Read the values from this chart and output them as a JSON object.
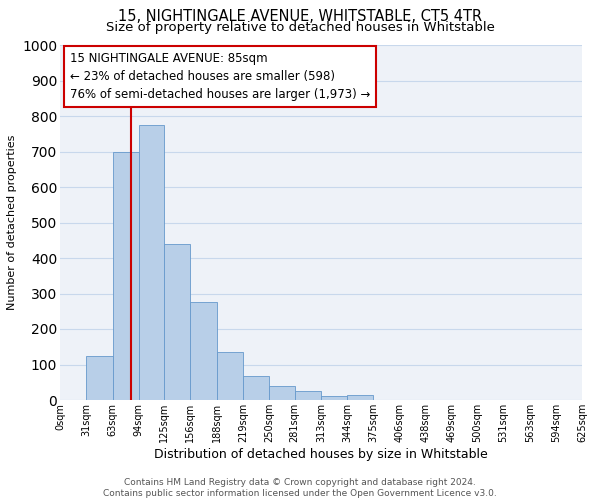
{
  "title": "15, NIGHTINGALE AVENUE, WHITSTABLE, CT5 4TR",
  "subtitle": "Size of property relative to detached houses in Whitstable",
  "xlabel": "Distribution of detached houses by size in Whitstable",
  "ylabel": "Number of detached properties",
  "bar_edges": [
    0,
    31,
    63,
    94,
    125,
    156,
    188,
    219,
    250,
    281,
    313,
    344,
    375,
    406,
    438,
    469,
    500,
    531,
    563,
    594,
    625
  ],
  "bar_heights": [
    0,
    125,
    700,
    775,
    440,
    275,
    135,
    68,
    40,
    25,
    10,
    15,
    0,
    0,
    0,
    0,
    0,
    0,
    0,
    0
  ],
  "bar_color": "#b8cfe8",
  "bar_edgecolor": "#6699cc",
  "property_size": 85,
  "vline_color": "#cc0000",
  "annotation_text": "15 NIGHTINGALE AVENUE: 85sqm\n← 23% of detached houses are smaller (598)\n76% of semi-detached houses are larger (1,973) →",
  "annotation_box_edgecolor": "#cc0000",
  "annotation_box_facecolor": "#ffffff",
  "ylim": [
    0,
    1000
  ],
  "tick_labels": [
    "0sqm",
    "31sqm",
    "63sqm",
    "94sqm",
    "125sqm",
    "156sqm",
    "188sqm",
    "219sqm",
    "250sqm",
    "281sqm",
    "313sqm",
    "344sqm",
    "375sqm",
    "406sqm",
    "438sqm",
    "469sqm",
    "500sqm",
    "531sqm",
    "563sqm",
    "594sqm",
    "625sqm"
  ],
  "grid_color": "#c8d8ec",
  "background_color": "#eef2f8",
  "footer_text": "Contains HM Land Registry data © Crown copyright and database right 2024.\nContains public sector information licensed under the Open Government Licence v3.0.",
  "title_fontsize": 10.5,
  "subtitle_fontsize": 9.5,
  "xlabel_fontsize": 9,
  "ylabel_fontsize": 8,
  "tick_fontsize": 7,
  "annotation_fontsize": 8.5,
  "footer_fontsize": 6.5
}
